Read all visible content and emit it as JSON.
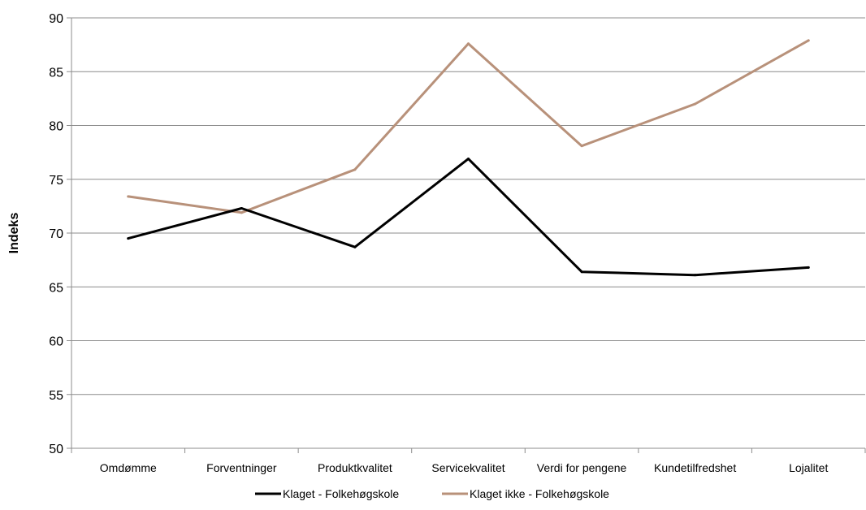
{
  "chart_data": {
    "type": "line",
    "title": "",
    "xlabel": "",
    "ylabel": "Indeks",
    "ylim": [
      50,
      90
    ],
    "yticks": [
      50,
      55,
      60,
      65,
      70,
      75,
      80,
      85,
      90
    ],
    "grid": true,
    "legend_position": "bottom",
    "categories": [
      "Omdømme",
      "Forventninger",
      "Produktkvalitet",
      "Servicekvalitet",
      "Verdi for pengene",
      "Kundetilfredshet",
      "Lojalitet"
    ],
    "series": [
      {
        "name": "Klaget - Folkehøgskole",
        "color": "#000000",
        "values": [
          69.5,
          72.3,
          68.7,
          76.9,
          66.4,
          66.1,
          66.8
        ]
      },
      {
        "name": "Klaget ikke - Folkehøgskole",
        "color": "#b8917a",
        "values": [
          73.4,
          71.9,
          75.9,
          87.6,
          78.1,
          82.0,
          87.9
        ]
      }
    ]
  }
}
